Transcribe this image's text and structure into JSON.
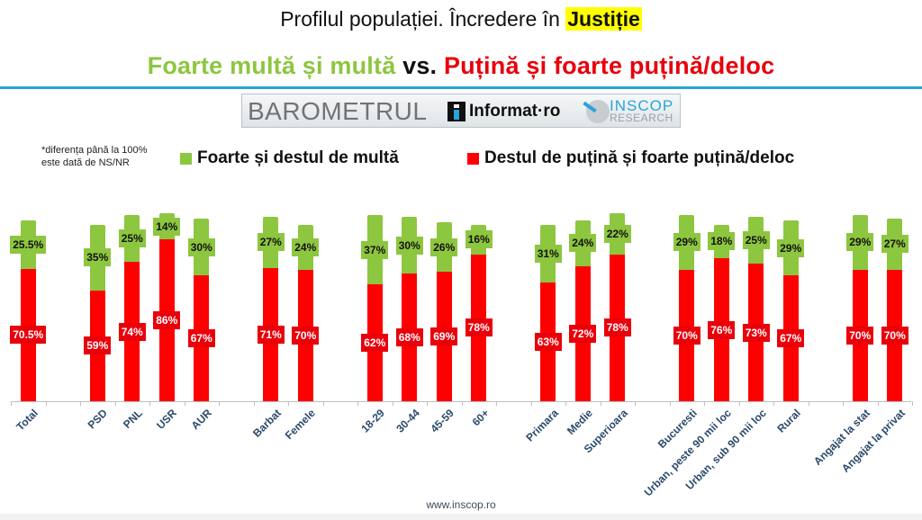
{
  "header": {
    "title_prefix": "Profilul populației. Încredere în ",
    "title_highlight": "Justiție",
    "subtitle_green": "Foarte multă și multă",
    "subtitle_vs": " vs. ",
    "subtitle_red": "Puțină și foarte puțină/deloc"
  },
  "banner": {
    "barometrul": "BAROMETRUL",
    "informat": "Informat·ro",
    "inscop": "INSCOP",
    "research": "RESEARCH"
  },
  "note": {
    "line1": "*diferența până la 100%",
    "line2": "este dată de NS/NR"
  },
  "colors": {
    "green": "#8dc63f",
    "red": "#ff0000",
    "accent_rule": "#29a3d8",
    "highlight": "#ffff00",
    "axis_label": "#2b4a6b"
  },
  "footer": {
    "url": "www.inscop.ro"
  },
  "chart_data": {
    "type": "bar",
    "stacked": true,
    "title": "Profilul populației. Încredere în Justiție",
    "subtitle": "Foarte multă și multă vs. Puțină și foarte puțină/deloc",
    "note": "*diferența până la 100% este dată de NS/NR",
    "legend_position": "top",
    "grid": false,
    "ylim": [
      0,
      100
    ],
    "categories": [
      "Total",
      "PSD",
      "PNL",
      "USR",
      "AUR",
      "Barbat",
      "Femele",
      "18-29",
      "30-44",
      "45-59",
      "60+",
      "Primara",
      "Medie",
      "Superioara",
      "Bucuresti",
      "Urban, peste 90 mii loc",
      "Urban, sub 90 mii loc",
      "Rural",
      "Angajat la stat",
      "Angajat la privat"
    ],
    "series": [
      {
        "name": "Destul de puțină și foarte puțină/deloc",
        "color": "#ff0000",
        "values": [
          70.5,
          59,
          74,
          86,
          67,
          71,
          70,
          62,
          68,
          69,
          78,
          63,
          72,
          78,
          70,
          76,
          73,
          67,
          70,
          70
        ],
        "labels": [
          "70.5%",
          "59%",
          "74%",
          "86%",
          "67%",
          "71%",
          "70%",
          "62%",
          "68%",
          "69%",
          "78%",
          "63%",
          "72%",
          "78%",
          "70%",
          "76%",
          "73%",
          "67%",
          "70%",
          "70%"
        ]
      },
      {
        "name": "Foarte și destul de multă",
        "color": "#8dc63f",
        "values": [
          25.5,
          35,
          25,
          14,
          30,
          27,
          24,
          37,
          30,
          26,
          16,
          31,
          24,
          22,
          29,
          18,
          25,
          29,
          29,
          27
        ],
        "labels": [
          "25.5%",
          "35%",
          "25%",
          "14%",
          "30%",
          "27%",
          "24%",
          "37%",
          "30%",
          "26%",
          "16%",
          "31%",
          "24%",
          "22%",
          "29%",
          "18%",
          "25%",
          "29%",
          "29%",
          "27%"
        ]
      }
    ]
  }
}
